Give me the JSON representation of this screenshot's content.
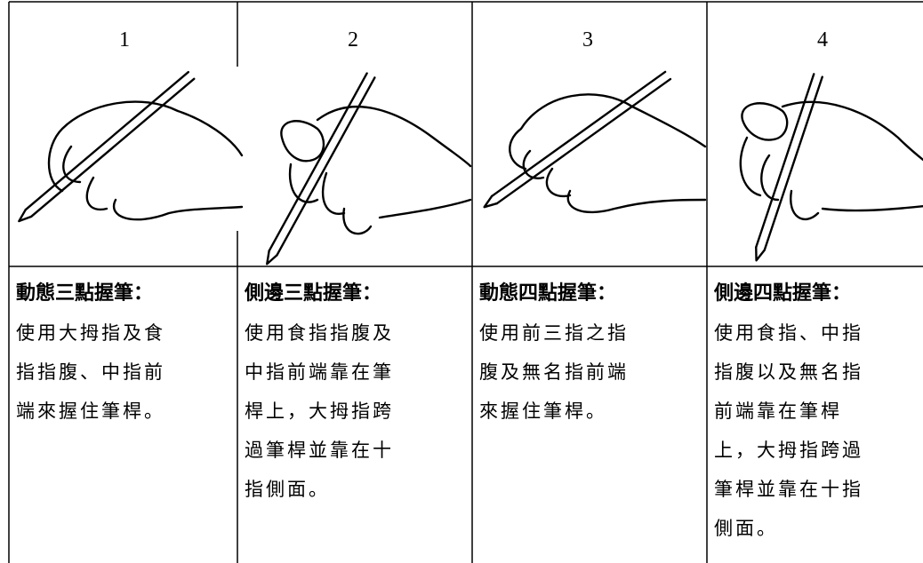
{
  "columns": [
    {
      "number": "1",
      "title": "動態三點握筆：",
      "lines": [
        "使用大拇指及食",
        "指指腹、中指前",
        "端來握住筆桿。"
      ]
    },
    {
      "number": "2",
      "title": "側邊三點握筆：",
      "lines": [
        "使用食指指腹及",
        "中指前端靠在筆",
        "桿上，大拇指跨",
        "過筆桿並靠在十",
        "指側面。"
      ]
    },
    {
      "number": "3",
      "title": "動態四點握筆：",
      "lines": [
        "使用前三指之指",
        "腹及無名指前端",
        "來握住筆桿。"
      ]
    },
    {
      "number": "4",
      "title": "側邊四點握筆：",
      "lines": [
        "使用食指、中指",
        "指腹以及無名指",
        "前端靠在筆桿",
        "上，大拇指跨過",
        "筆桿並靠在十指",
        "側面。"
      ]
    }
  ]
}
